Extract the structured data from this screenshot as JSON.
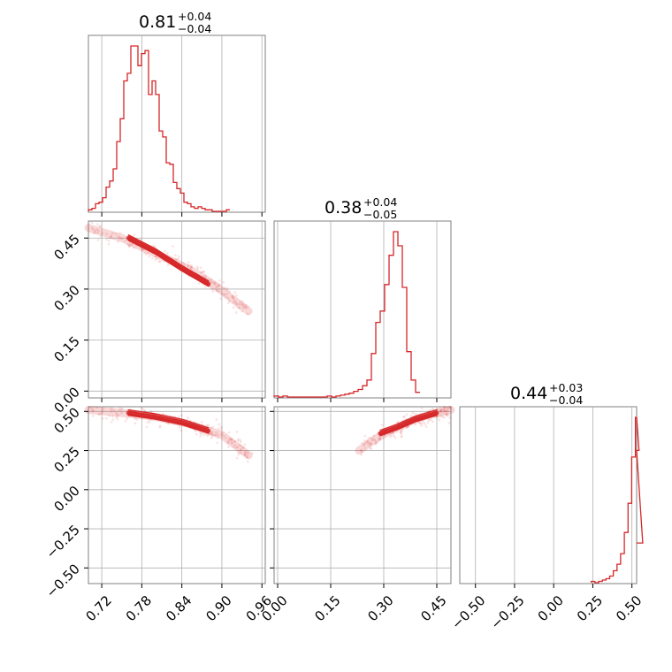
{
  "colors": {
    "hist": "#d62728",
    "grid": "#b0b0b0",
    "frame": "#808080"
  },
  "chart_data": [
    {
      "type": "histogram",
      "panel": "diag-0",
      "title": {
        "value": "0.81",
        "upper": "+0.04",
        "lower": "−0.04"
      },
      "xlim": [
        0.7,
        0.965
      ],
      "xticks": [
        0.72,
        0.78,
        0.84,
        0.9,
        0.96
      ],
      "xtick_labels": [],
      "bin_edges_start": 0.7,
      "bin_width": 0.0053,
      "counts": [
        1,
        2,
        5,
        6,
        9,
        16,
        20,
        28,
        46,
        61,
        86,
        91,
        109,
        109,
        96,
        104,
        106,
        77,
        86,
        77,
        53,
        49,
        32,
        31,
        19,
        15,
        12,
        6,
        5,
        3,
        2,
        3,
        2,
        1,
        1,
        0,
        0,
        0,
        0,
        1
      ],
      "grid": true
    },
    {
      "type": "scatter_density",
      "panel": "r1-c0",
      "xlim": [
        0.7,
        0.965
      ],
      "ylim": [
        -0.02,
        0.5
      ],
      "xticks": [
        0.72,
        0.78,
        0.84,
        0.9,
        0.96
      ],
      "yticks": [
        0.0,
        0.15,
        0.3,
        0.45
      ],
      "ytick_labels": [
        "0.00",
        "0.15",
        "0.30",
        "0.45"
      ],
      "ridge": [
        [
          0.7,
          0.48
        ],
        [
          0.75,
          0.45
        ],
        [
          0.8,
          0.405
        ],
        [
          0.85,
          0.36
        ],
        [
          0.89,
          0.31
        ],
        [
          0.94,
          0.235
        ]
      ],
      "core": [
        [
          0.76,
          0.45
        ],
        [
          0.8,
          0.41
        ],
        [
          0.84,
          0.36
        ],
        [
          0.88,
          0.315
        ]
      ],
      "grid": true
    },
    {
      "type": "histogram",
      "panel": "diag-1",
      "title": {
        "value": "0.38",
        "upper": "+0.04",
        "lower": "−0.05"
      },
      "xlim": [
        -0.01,
        0.49
      ],
      "xticks": [
        0.0,
        0.15,
        0.3,
        0.45
      ],
      "xtick_labels": [],
      "bin_edges_start": -0.01,
      "bin_width": 0.0125,
      "counts": [
        1,
        0,
        1,
        0,
        0,
        0,
        0,
        0,
        0,
        0,
        0,
        0,
        1,
        0,
        1,
        2,
        3,
        4,
        6,
        8,
        12,
        18,
        46,
        79,
        91,
        119,
        150,
        175,
        160,
        116,
        48,
        18,
        5
      ],
      "grid": true
    },
    {
      "type": "scatter_density",
      "panel": "r2-c0",
      "xlim": [
        0.7,
        0.965
      ],
      "ylim": [
        -0.6,
        0.53
      ],
      "xticks": [
        0.72,
        0.78,
        0.84,
        0.9,
        0.96
      ],
      "xtick_labels": [
        "0.72",
        "0.78",
        "0.84",
        "0.90",
        "0.96"
      ],
      "yticks": [
        -0.5,
        -0.25,
        0.0,
        0.25,
        0.5
      ],
      "ytick_labels": [
        "−0.50",
        "−0.25",
        "0.00",
        "0.25",
        "0.50"
      ],
      "ridge": [
        [
          0.7,
          0.51
        ],
        [
          0.75,
          0.49
        ],
        [
          0.8,
          0.465
        ],
        [
          0.85,
          0.42
        ],
        [
          0.9,
          0.35
        ],
        [
          0.94,
          0.22
        ]
      ],
      "core": [
        [
          0.76,
          0.49
        ],
        [
          0.8,
          0.465
        ],
        [
          0.84,
          0.43
        ],
        [
          0.88,
          0.375
        ]
      ],
      "grid": true
    },
    {
      "type": "scatter_density",
      "panel": "r2-c1",
      "xlim": [
        -0.01,
        0.49
      ],
      "ylim": [
        -0.6,
        0.53
      ],
      "xticks": [
        0.0,
        0.15,
        0.3,
        0.45
      ],
      "xtick_labels": [
        "0.00",
        "0.15",
        "0.30",
        "0.45"
      ],
      "ridge": [
        [
          0.23,
          0.25
        ],
        [
          0.28,
          0.33
        ],
        [
          0.33,
          0.39
        ],
        [
          0.38,
          0.44
        ],
        [
          0.43,
          0.48
        ],
        [
          0.49,
          0.51
        ]
      ],
      "core": [
        [
          0.29,
          0.36
        ],
        [
          0.34,
          0.4
        ],
        [
          0.39,
          0.45
        ],
        [
          0.45,
          0.49
        ]
      ],
      "grid": true
    },
    {
      "type": "histogram",
      "panel": "diag-2",
      "title": {
        "value": "0.44",
        "upper": "+0.03",
        "lower": "−0.04"
      },
      "xlim": [
        -0.6,
        0.53
      ],
      "xticks": [
        -0.5,
        -0.25,
        0.0,
        0.25,
        0.5
      ],
      "xtick_labels": [
        "−0.50",
        "−0.25",
        "0.00",
        "0.25",
        "0.50"
      ],
      "bin_edges_start": 0.24,
      "bin_width": 0.0235,
      "counts": [
        1,
        0,
        1,
        2,
        3,
        5,
        9,
        14,
        22,
        38,
        60,
        95,
        125,
        100,
        30
      ],
      "grid": true
    }
  ]
}
